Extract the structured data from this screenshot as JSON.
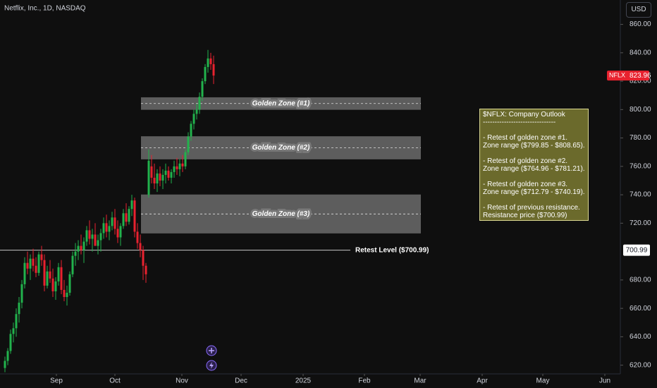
{
  "chart_data": {
    "type": "candlestick",
    "title": "Netflix, Inc., 1D, NASDAQ",
    "currency": "USD",
    "up_color": "#22b24c",
    "down_color": "#e8222f",
    "open": [
      618,
      623,
      630,
      642,
      646,
      656,
      664,
      677,
      692,
      688,
      695,
      690,
      685,
      698,
      694,
      676,
      686,
      681,
      672,
      679,
      689,
      673,
      668,
      671,
      684,
      697,
      700,
      704,
      701,
      707,
      715,
      709,
      712,
      704,
      708,
      713,
      720,
      714,
      718,
      724,
      716,
      710,
      718,
      727,
      721,
      730,
      736,
      714,
      706,
      701,
      690,
      740,
      760,
      752,
      748,
      755,
      750,
      754,
      757,
      752,
      756,
      760,
      758,
      762,
      760,
      770,
      781,
      790,
      797,
      800,
      809,
      820,
      830,
      836,
      832
    ],
    "high": [
      626,
      632,
      645,
      650,
      660,
      668,
      680,
      696,
      700,
      698,
      702,
      696,
      700,
      704,
      698,
      690,
      694,
      688,
      682,
      692,
      694,
      680,
      676,
      686,
      700,
      706,
      708,
      712,
      710,
      718,
      722,
      716,
      720,
      712,
      716,
      724,
      726,
      722,
      728,
      730,
      722,
      720,
      730,
      734,
      732,
      740,
      738,
      720,
      712,
      704,
      692,
      772,
      768,
      762,
      758,
      760,
      758,
      762,
      760,
      758,
      764,
      766,
      765,
      768,
      772,
      784,
      792,
      800,
      804,
      812,
      822,
      832,
      842,
      840,
      838
    ],
    "low": [
      615,
      620,
      628,
      636,
      640,
      650,
      660,
      674,
      684,
      680,
      686,
      682,
      683,
      690,
      672,
      674,
      678,
      668,
      666,
      676,
      670,
      665,
      662,
      669,
      682,
      690,
      694,
      698,
      692,
      704,
      705,
      700,
      706,
      698,
      700,
      709,
      710,
      708,
      715,
      712,
      706,
      704,
      716,
      718,
      719,
      725,
      710,
      702,
      696,
      680,
      678,
      738,
      748,
      744,
      742,
      746,
      744,
      748,
      750,
      748,
      752,
      754,
      753,
      756,
      758,
      768,
      778,
      786,
      793,
      797,
      806,
      818,
      826,
      828,
      818
    ],
    "close": [
      623,
      630,
      642,
      646,
      656,
      664,
      677,
      692,
      688,
      695,
      690,
      685,
      698,
      694,
      676,
      686,
      681,
      672,
      679,
      689,
      673,
      668,
      671,
      684,
      697,
      700,
      704,
      701,
      707,
      715,
      709,
      712,
      704,
      708,
      713,
      720,
      714,
      718,
      724,
      716,
      710,
      718,
      727,
      721,
      730,
      736,
      714,
      706,
      701,
      690,
      684,
      764,
      752,
      748,
      755,
      750,
      754,
      757,
      752,
      756,
      760,
      758,
      762,
      760,
      770,
      781,
      790,
      797,
      800,
      809,
      820,
      830,
      836,
      832,
      823.96
    ],
    "xlim": [
      -1.75,
      218.25
    ],
    "xticks": [
      {
        "value": 18.25,
        "label": "Sep"
      },
      {
        "value": 39,
        "label": "Oct"
      },
      {
        "value": 62.75,
        "label": "Nov"
      },
      {
        "value": 83.75,
        "label": "Dec"
      },
      {
        "value": 105.75,
        "label": "2025"
      },
      {
        "value": 127.5,
        "label": "Feb"
      },
      {
        "value": 147.25,
        "label": "Mar"
      },
      {
        "value": 169.25,
        "label": "Apr"
      },
      {
        "value": 190.75,
        "label": "May"
      },
      {
        "value": 212.75,
        "label": "Jun"
      }
    ],
    "ylim": [
      613.85,
      877.18
    ],
    "yticks": [
      {
        "value": 620,
        "label": "620.00"
      },
      {
        "value": 640,
        "label": "640.00"
      },
      {
        "value": 660,
        "label": "660.00"
      },
      {
        "value": 680,
        "label": "680.00"
      },
      {
        "value": 720,
        "label": "720.00"
      },
      {
        "value": 740,
        "label": "740.00"
      },
      {
        "value": 760,
        "label": "760.00"
      },
      {
        "value": 780,
        "label": "780.00"
      },
      {
        "value": 800,
        "label": "800.00"
      },
      {
        "value": 820,
        "label": "820.00"
      },
      {
        "value": 840,
        "label": "840.00"
      },
      {
        "value": 860,
        "label": "860.00"
      }
    ],
    "zones": [
      {
        "label": "Golden Zone (#1)",
        "low": 799.85,
        "high": 808.65,
        "start": 48.25,
        "end": 147.5
      },
      {
        "label": "Golden Zone (#2)",
        "low": 764.96,
        "high": 781.21,
        "start": 48.25,
        "end": 147.5
      },
      {
        "label": "Golden Zone (#3)",
        "low": 712.79,
        "high": 740.19,
        "start": 48.25,
        "end": 147.5
      }
    ],
    "retest": {
      "label": "Retest Level ($700.99)",
      "value": 700.99,
      "axis_label": "700.99",
      "end": 122.5
    },
    "last_price": {
      "symbol": "NFLX",
      "value": 823.96
    },
    "note": [
      "$NFLX: Company Outlook",
      "-------------------------------",
      "",
      "- Retest of golden zone #1.",
      "Zone range ($799.85 - $808.65).",
      "",
      "- Retest of golden zone #2.",
      "Zone range ($764.96 - $781.21).",
      "",
      "- Retest of golden zone #3.",
      "Zone range ($712.79 - $740.19).",
      "",
      "- Retest of previous resistance.",
      "Resistance price ($700.99)"
    ]
  }
}
